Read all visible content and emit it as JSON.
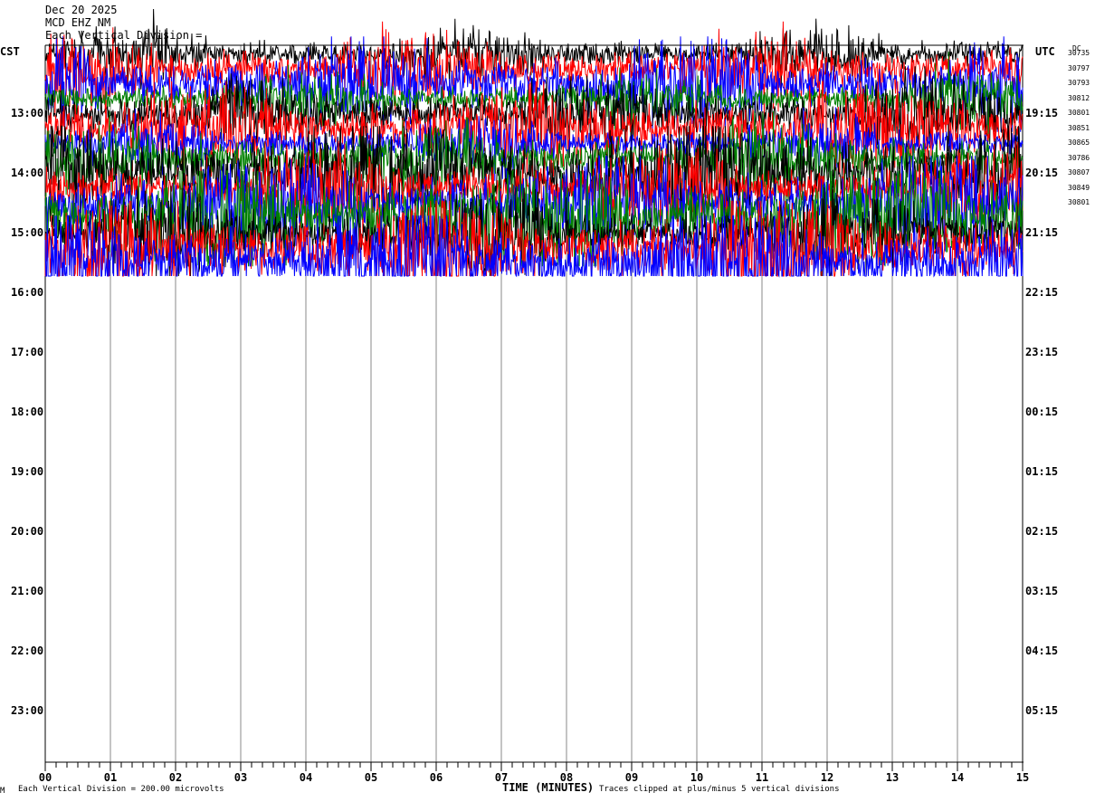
{
  "header": {
    "date": "Dec 20 2025",
    "station": "MCD EHZ NM",
    "scale": "Each Vertical Division ="
  },
  "labels": {
    "left_tz": "CST",
    "right_tz": "UTC",
    "dc_head": "DC"
  },
  "footer": {
    "division": "Each Vertical Division =  200.00 microvolts",
    "x_title": "TIME (MINUTES)",
    "clip": "Traces clipped at plus/minus 5 vertical divisions",
    "mark": "M"
  },
  "chart_data": {
    "type": "line",
    "title": "",
    "xlabel": "TIME (MINUTES)",
    "x_ticks": [
      "00",
      "01",
      "02",
      "03",
      "04",
      "05",
      "06",
      "07",
      "08",
      "09",
      "10",
      "11",
      "12",
      "13",
      "14",
      "15"
    ],
    "xlim": [
      0,
      15
    ],
    "left_hour_labels": [
      "13:00",
      "14:00",
      "15:00",
      "16:00",
      "17:00",
      "18:00",
      "19:00",
      "20:00",
      "21:00",
      "22:00",
      "23:00"
    ],
    "right_hour_labels": [
      "19:15",
      "20:15",
      "21:15",
      "22:15",
      "23:15",
      "00:15",
      "01:15",
      "02:15",
      "03:15",
      "04:15",
      "05:15"
    ],
    "dc_offsets": [
      "30735",
      "30797",
      "30793",
      "30812",
      "30801",
      "30851",
      "30865",
      "30786",
      "30807",
      "30849",
      "30801"
    ],
    "trace_colors": [
      "#000000",
      "#ff0000",
      "#0000ff",
      "#008000"
    ],
    "traces_recorded": 15,
    "last_trace_end_minute": 15,
    "microvolts_per_division": 200.0,
    "clip_divisions": 5
  }
}
